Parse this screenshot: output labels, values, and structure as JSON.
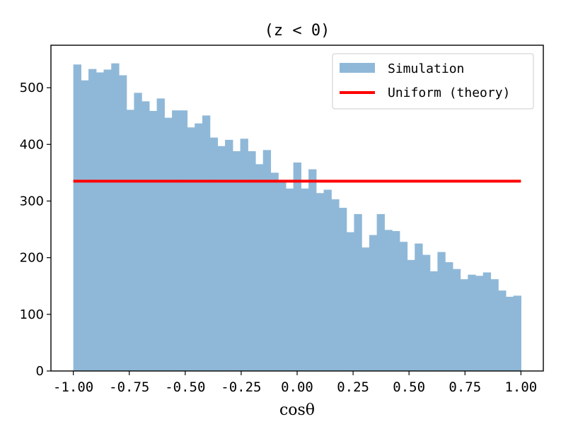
{
  "chart_data": {
    "type": "bar",
    "title": "(z < 0)",
    "xlabel": "cosθ",
    "ylabel": "",
    "xlim": [
      -1.1,
      1.1
    ],
    "ylim": [
      0,
      575
    ],
    "grid": false,
    "legend_position": "top-right",
    "x_ticks": [
      "-1.00",
      "-0.75",
      "-0.50",
      "-0.25",
      "0.00",
      "0.25",
      "0.50",
      "0.75",
      "1.00"
    ],
    "x_tick_values": [
      -1.0,
      -0.75,
      -0.5,
      -0.25,
      0.0,
      0.25,
      0.5,
      0.75,
      1.0
    ],
    "y_ticks": [
      "0",
      "100",
      "200",
      "300",
      "400",
      "500"
    ],
    "y_tick_values": [
      0,
      100,
      200,
      300,
      400,
      500
    ],
    "bin_range": [
      -1.0,
      1.0
    ],
    "series": [
      {
        "name": "Simulation",
        "kind": "histogram",
        "color": "#8fb8d8",
        "values": [
          541,
          513,
          533,
          527,
          532,
          543,
          522,
          461,
          491,
          476,
          459,
          481,
          447,
          460,
          460,
          430,
          437,
          451,
          412,
          397,
          408,
          388,
          410,
          388,
          365,
          390,
          350,
          337,
          322,
          368,
          322,
          356,
          314,
          320,
          303,
          288,
          245,
          277,
          218,
          240,
          277,
          249,
          247,
          228,
          196,
          225,
          205,
          176,
          210,
          192,
          180,
          162,
          170,
          168,
          174,
          162,
          142,
          131,
          133
        ]
      },
      {
        "name": "Uniform (theory)",
        "kind": "line",
        "color": "#ff0000",
        "x": [
          -1.0,
          1.0
        ],
        "y": [
          335,
          335
        ]
      }
    ]
  }
}
